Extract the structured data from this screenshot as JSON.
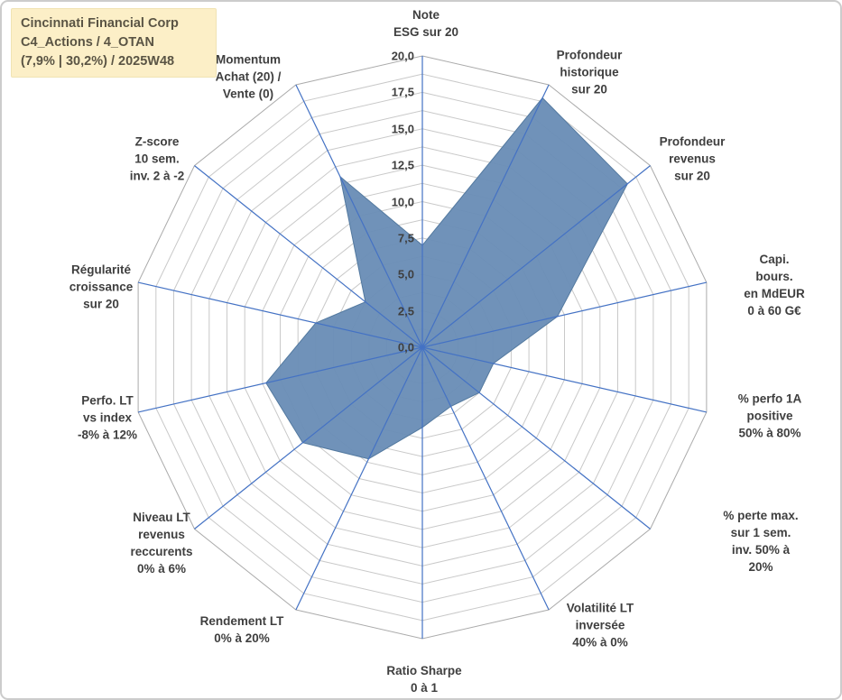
{
  "title_box": {
    "line1": "Cincinnati Financial Corp",
    "line2": "C4_Actions / 4_OTAN",
    "line3": "(7,9% | 30,2%) / 2025W48"
  },
  "chart_data": {
    "type": "radar",
    "axes": [
      {
        "label": "Note\nESG sur 20",
        "value": 7
      },
      {
        "label": "Profondeur\nhistorique\nsur 20",
        "value": 19
      },
      {
        "label": "Profondeur\nrevenus\nsur 20",
        "value": 18
      },
      {
        "label": "Capi. bours.\nen MdEUR\n0 à 60 G€",
        "value": 9.5
      },
      {
        "label": "% perfo 1A\npositive\n50% à 80%",
        "value": 5
      },
      {
        "label": "% perte max.\nsur 1 sem.\ninv. 50% à 20%",
        "value": 5
      },
      {
        "label": "Volatilité LT\ninversée\n40% à 0%",
        "value": 4.5
      },
      {
        "label": "Ratio Sharpe\n0 à 1",
        "value": 5.5
      },
      {
        "label": "Rendement LT\n0% à 20%",
        "value": 8.5
      },
      {
        "label": "Niveau LT\nrevenus\nreccurents\n0% à 6%",
        "value": 10.5
      },
      {
        "label": "Perfo. LT\nvs index\n-8% à 12%",
        "value": 11
      },
      {
        "label": "Régularité\ncroissance\nsur 20",
        "value": 7.5
      },
      {
        "label": "Z-score\n10 sem.\ninv. 2 à -2",
        "value": 5
      },
      {
        "label": "Momentum\nAchat (20) /\nVente (0)",
        "value": 13
      }
    ],
    "scale": {
      "min": 0,
      "max": 20,
      "major_step": 2.5,
      "minor_step": 1.25,
      "tick_labels": [
        "0,0",
        "2,5",
        "5,0",
        "7,5",
        "10,0",
        "12,5",
        "15,0",
        "17,5",
        "20,0"
      ]
    },
    "layout_hints": {
      "grid": "on",
      "legend": "none",
      "start_axis": "top",
      "direction": "clockwise"
    },
    "colors": {
      "fill": "#6a8eb6",
      "fill_stroke": "#53799f",
      "axis_line": "#4472c4",
      "gridline": "#c9c9c9",
      "outer_ring": "#ababab",
      "label": "#3f3f3f",
      "title_bg": "#fcefc7"
    }
  }
}
